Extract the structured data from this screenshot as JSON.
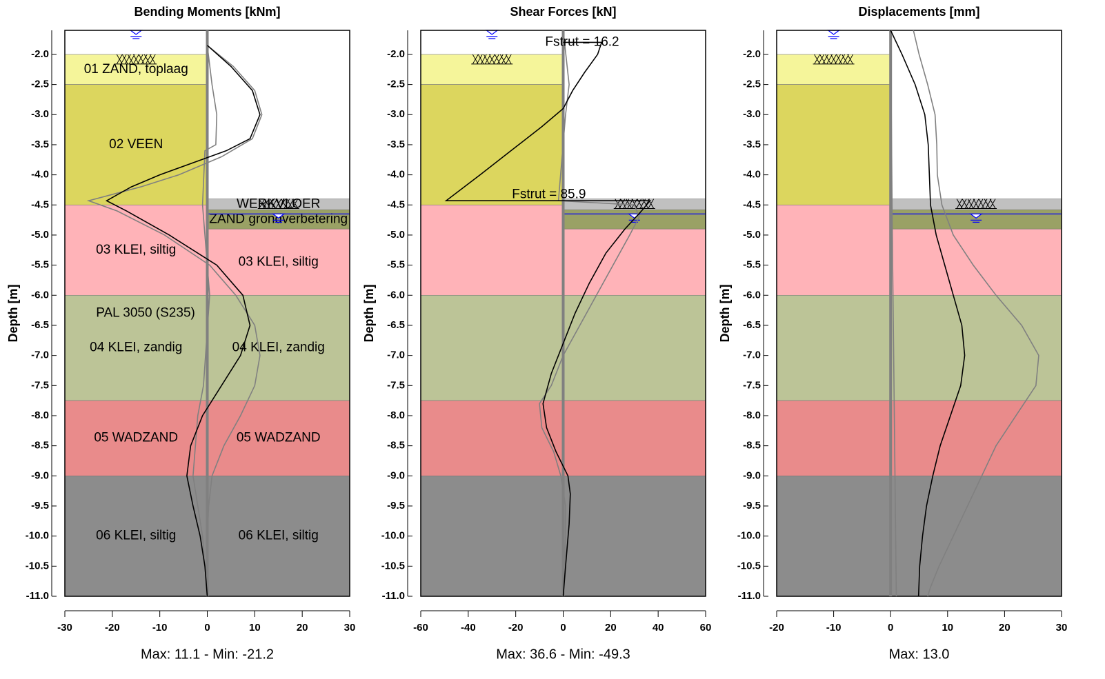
{
  "depth_axis": {
    "label": "Depth [m]",
    "ylim": [
      -11,
      -1.6
    ],
    "yticks": [
      {
        "value": -2,
        "label": "-2.0"
      },
      {
        "value": -2.5,
        "label": "-2.5"
      },
      {
        "value": -3,
        "label": "-3.0"
      },
      {
        "value": -3.5,
        "label": "-3.5"
      },
      {
        "value": -4,
        "label": "-4.0"
      },
      {
        "value": -4.5,
        "label": "-4.5"
      },
      {
        "value": -5,
        "label": "-5.0"
      },
      {
        "value": -5.5,
        "label": "-5.5"
      },
      {
        "value": -6,
        "label": "-6.0"
      },
      {
        "value": -6.5,
        "label": "-6.5"
      },
      {
        "value": -7,
        "label": "-7.0"
      },
      {
        "value": -7.5,
        "label": "-7.5"
      },
      {
        "value": -8,
        "label": "-8.0"
      },
      {
        "value": -8.5,
        "label": "-8.5"
      },
      {
        "value": -9,
        "label": "-9.0"
      },
      {
        "value": -9.5,
        "label": "-9.5"
      },
      {
        "value": -10,
        "label": "-10.0"
      },
      {
        "value": -10.5,
        "label": "-10.5"
      },
      {
        "value": -11,
        "label": "-11.0"
      }
    ]
  },
  "soil": {
    "left": [
      {
        "label": "01 ZAND, toplaag",
        "top": -2.0,
        "bottom": -2.5,
        "color": "#f5f59a"
      },
      {
        "label": "02 VEEN",
        "top": -2.5,
        "bottom": -4.5,
        "color": "#dcd65e"
      },
      {
        "label": "03 KLEI, siltig",
        "top": -4.5,
        "bottom": -6.0,
        "color": "#ffb3b8"
      },
      {
        "label": "04 KLEI, zandig",
        "top": -6.0,
        "bottom": -7.75,
        "color": "#bcc497"
      },
      {
        "label": "05 WADZAND",
        "top": -7.75,
        "bottom": -9.0,
        "color": "#e98b8b"
      },
      {
        "label": "06 KLEI, siltig",
        "top": -9.0,
        "bottom": -11.0,
        "color": "#8c8c8c"
      }
    ],
    "right": [
      {
        "label": "WERKVLOER",
        "top": -4.4,
        "bottom": -4.58,
        "color": "#c0c0c0"
      },
      {
        "label": "ZAND grondverbetering",
        "top": -4.58,
        "bottom": -4.9,
        "color": "#9aa165"
      },
      {
        "label": "03 KLEI, siltig",
        "top": -4.9,
        "bottom": -6.0,
        "color": "#ffb3b8"
      },
      {
        "label": "04 KLEI, zandig",
        "top": -6.0,
        "bottom": -7.75,
        "color": "#bcc497"
      },
      {
        "label": "05 WADZAND",
        "top": -7.75,
        "bottom": -9.0,
        "color": "#e98b8b"
      },
      {
        "label": "06 KLEI, siltig",
        "top": -9.0,
        "bottom": -11.0,
        "color": "#8c8c8c"
      }
    ],
    "phreatic": {
      "left": -1.6,
      "right": -4.65
    }
  },
  "chart_data": [
    {
      "type": "line",
      "title": "Bending Moments [kNm]",
      "footer": "Max: 11.1 - Min: -21.2",
      "xlim": [
        -30,
        30
      ],
      "xticks": [
        -30,
        -20,
        -10,
        0,
        10,
        20,
        30
      ],
      "soil_labels": true,
      "annotations": [
        {
          "text": "PAL 3050 (S235)",
          "x": -13,
          "y": -6.3
        }
      ],
      "series": [
        {
          "color": "#808080",
          "depth": [
            -1.85,
            -2.5,
            -3.0,
            -3.5,
            -3.6,
            -4.5,
            -6.0,
            -7.5,
            -8.0,
            -9.0,
            -9.5,
            -10.0,
            -11.0
          ],
          "values": [
            0,
            1,
            2,
            1.8,
            -0.5,
            -1,
            0.5,
            -0.8,
            -2,
            -3,
            -2,
            -1,
            0
          ]
        },
        {
          "color": "#808080",
          "depth": [
            -1.85,
            -2.2,
            -2.6,
            -3.0,
            -3.4,
            -3.7,
            -4.0,
            -4.2,
            -4.43,
            -4.6,
            -5.0,
            -5.5,
            -6.0,
            -6.5,
            -7.0,
            -7.5,
            -8.0,
            -8.5,
            -9.0,
            -9.5,
            -10.0,
            -11.0
          ],
          "values": [
            0,
            5.5,
            10,
            11.5,
            9.5,
            3,
            -6,
            -14,
            -25,
            -19,
            -9,
            0.5,
            6,
            10,
            11.1,
            10,
            7,
            3.5,
            1,
            0.3,
            0,
            0
          ]
        },
        {
          "color": "#000000",
          "depth": [
            -1.85,
            -2.2,
            -2.6,
            -3.0,
            -3.4,
            -3.6,
            -3.8,
            -4.0,
            -4.2,
            -4.43,
            -4.6,
            -5.0,
            -5.5,
            -6.0,
            -6.5,
            -7.0,
            -7.5,
            -8.0,
            -8.5,
            -9.0,
            -9.5,
            -10.0,
            -10.5,
            -11.0
          ],
          "values": [
            0,
            5,
            9.5,
            11.1,
            9,
            4,
            -3,
            -10,
            -16,
            -21.2,
            -17,
            -8,
            2,
            7.5,
            9,
            7,
            3,
            -1,
            -3.5,
            -4.3,
            -3,
            -1.5,
            -0.5,
            0
          ]
        }
      ]
    },
    {
      "type": "line",
      "title": "Shear Forces [kN]",
      "footer": "Max: 36.6 - Min: -49.3",
      "xlim": [
        -60,
        60
      ],
      "xticks": [
        -60,
        -40,
        -20,
        0,
        20,
        40,
        60
      ],
      "soil_labels": false,
      "annotations": [
        {
          "text": "Fstrut = 16.2",
          "x": 8,
          "y": -1.8
        },
        {
          "text": "Fstrut = 85.9",
          "x": -6,
          "y": -4.33
        }
      ],
      "series": [
        {
          "color": "#808080",
          "depth": [
            -1.6,
            -2.5,
            -3.0,
            -4.43,
            -4.5,
            -4.7,
            -5.0,
            -5.5,
            -6.0,
            -6.5,
            -7.0,
            -7.5,
            -7.8,
            -8.2,
            -8.6,
            -9.0,
            -9.5,
            -10.0,
            -11.0
          ],
          "values": [
            0,
            2.5,
            1,
            -2,
            30,
            32,
            28,
            21,
            14,
            7,
            0,
            -5,
            -10,
            -9,
            -4,
            -1,
            1,
            1,
            0
          ]
        },
        {
          "color": "#000000",
          "depth": [
            -1.8,
            -1.8,
            -2.0,
            -2.3,
            -2.6,
            -2.9,
            -3.2,
            -3.6,
            -4.0,
            -4.43,
            -4.43,
            -4.6,
            -4.9,
            -5.3,
            -5.8,
            -6.3,
            -6.8,
            -7.3,
            -7.8,
            -8.2,
            -8.6,
            -9.0,
            -9.3,
            -9.8,
            -10.5,
            -11.0
          ],
          "values": [
            0,
            16.2,
            14.5,
            9,
            4,
            0,
            -9,
            -22,
            -35,
            -49.3,
            36.6,
            33,
            26,
            18,
            11,
            5,
            0,
            -5,
            -8.5,
            -7,
            -3,
            2,
            3,
            2.5,
            1,
            0
          ]
        }
      ]
    },
    {
      "type": "line",
      "title": "Displacements [mm]",
      "footer": "Max: 13.0",
      "xlim": [
        -20,
        30
      ],
      "xticks": [
        -20,
        -10,
        0,
        10,
        20,
        30
      ],
      "soil_labels": false,
      "annotations": [],
      "series": [
        {
          "color": "#808080",
          "depth": [
            -1.6,
            -5.0,
            -11.0
          ],
          "values": [
            0,
            0.3,
            1
          ]
        },
        {
          "color": "#808080",
          "depth": [
            -1.6,
            -2.0,
            -2.5,
            -3.0,
            -3.5,
            -4.0,
            -4.5,
            -5.0,
            -5.5,
            -6.0,
            -6.5,
            -7.0,
            -7.5,
            -8.0,
            -8.5,
            -9.0,
            -9.5,
            -10.0,
            -10.5,
            -10.85,
            -11.0
          ],
          "values": [
            4,
            5,
            6.5,
            7.8,
            8.1,
            8.2,
            9,
            11,
            14.5,
            18.5,
            23,
            26,
            25.5,
            22,
            18.5,
            16,
            13.5,
            11,
            8.5,
            7,
            6.5
          ]
        },
        {
          "color": "#000000",
          "depth": [
            -1.6,
            -2.0,
            -2.5,
            -3.0,
            -3.5,
            -4.0,
            -4.5,
            -5.0,
            -5.5,
            -6.0,
            -6.5,
            -7.0,
            -7.5,
            -8.0,
            -8.5,
            -9.0,
            -9.5,
            -10.0,
            -10.5,
            -11.0
          ],
          "values": [
            0,
            2,
            4.3,
            6,
            6.6,
            6.8,
            7,
            8,
            9.5,
            11,
            12.5,
            13.0,
            12.3,
            10.5,
            8.7,
            7.4,
            6.3,
            5.6,
            5.1,
            4.9
          ]
        }
      ]
    }
  ]
}
